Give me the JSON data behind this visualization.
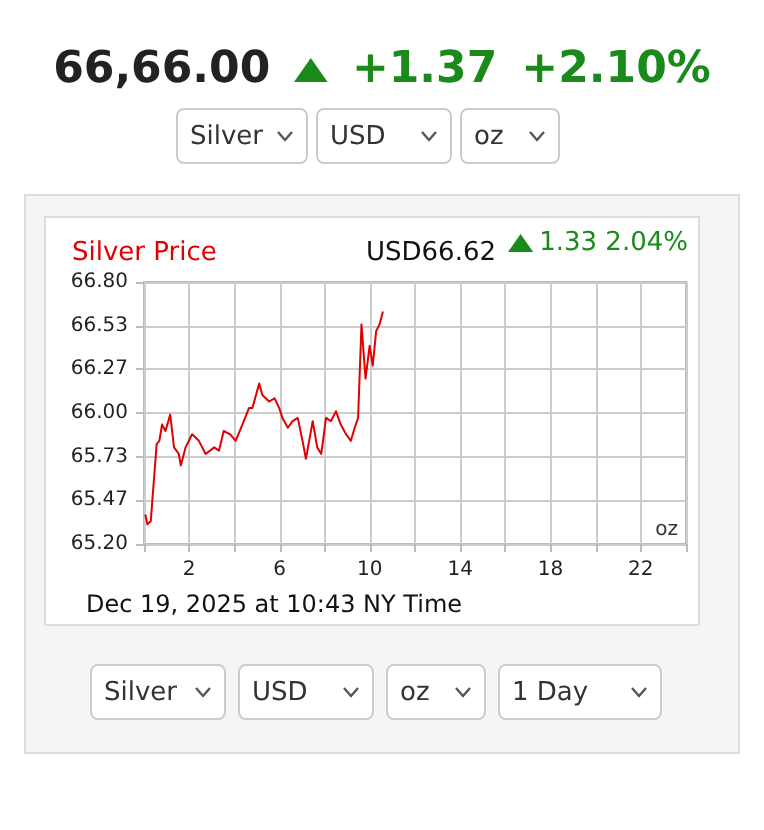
{
  "chart_data": {
    "type": "line",
    "title": "Silver Price",
    "subtitle": "USD66.62",
    "annotations": [
      "66,66.00",
      "+1.37",
      "+2.10%",
      "Silver",
      "USD",
      "oz",
      "1.33 2.04%",
      "oz",
      "Dec 19, 2025 at 10:43 NY Time",
      "Silver",
      "USD",
      "oz",
      "1 Day"
    ],
    "x": [
      0.06,
      0.15,
      0.3,
      0.56,
      0.68,
      0.8,
      0.95,
      1.16,
      1.33,
      1.54,
      1.63,
      1.84,
      2.13,
      2.43,
      2.73,
      3.11,
      3.32,
      3.53,
      3.82,
      4.06,
      4.36,
      4.65,
      4.8,
      5.1,
      5.24,
      5.54,
      5.78,
      5.99,
      6.13,
      6.37,
      6.58,
      6.81,
      7.02,
      7.17,
      7.47,
      7.67,
      7.85,
      8.06,
      8.27,
      8.5,
      8.71,
      8.95,
      9.16,
      9.33,
      9.48,
      9.63,
      9.81,
      9.99,
      10.13,
      10.28,
      10.43,
      10.58
    ],
    "values": [
      65.38,
      65.32,
      65.34,
      65.81,
      65.83,
      65.93,
      65.89,
      65.99,
      65.79,
      65.75,
      65.68,
      65.79,
      65.87,
      65.83,
      65.75,
      65.79,
      65.77,
      65.89,
      65.87,
      65.83,
      65.93,
      66.03,
      66.03,
      66.18,
      66.11,
      66.07,
      66.09,
      66.03,
      65.97,
      65.91,
      65.95,
      65.97,
      65.83,
      65.72,
      65.95,
      65.79,
      65.75,
      65.97,
      65.95,
      66.01,
      65.93,
      65.87,
      65.83,
      65.91,
      65.97,
      66.54,
      66.21,
      66.41,
      66.29,
      66.5,
      66.54,
      66.62
    ],
    "color": "#e00000",
    "marker": "none",
    "line_style": "solid",
    "grid": true,
    "xlim": [
      0,
      24
    ],
    "xticks": [
      {
        "value": 0,
        "label": null
      },
      2,
      {
        "value": 4,
        "label": null
      },
      6,
      {
        "value": 8,
        "label": null
      },
      10,
      {
        "value": 12,
        "label": null
      },
      14,
      {
        "value": 16,
        "label": null
      },
      18,
      {
        "value": 20,
        "label": null
      },
      22,
      {
        "value": 24,
        "label": null
      }
    ],
    "ylim": [
      65.2,
      66.8
    ],
    "yticks": [
      {
        "value": 65.2,
        "label": "65.20"
      },
      {
        "value": 65.47,
        "label": "65.47"
      },
      {
        "value": 65.73,
        "label": "65.73"
      },
      {
        "value": 66,
        "label": "66.00"
      },
      {
        "value": 66.27,
        "label": "66.27"
      },
      {
        "value": 66.53,
        "label": "66.53"
      },
      {
        "value": 66.8,
        "label": "66.80"
      }
    ]
  }
}
